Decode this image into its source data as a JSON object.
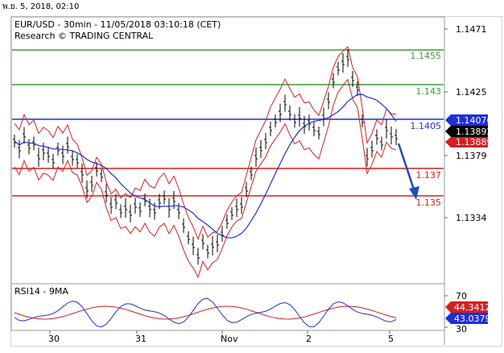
{
  "timestamp": "พ.ย. 5, 2018, 02:10",
  "header": {
    "title": "EUR/USD - 30min - 11/05/2018 03:10:18 (CET)",
    "subtitle": "Research © TRADING CENTRAL"
  },
  "price_axis": {
    "ticks": [
      "1.1471",
      "1.1425",
      "1.1379",
      "1.1334"
    ]
  },
  "levels": [
    {
      "label": "1.1455",
      "color": "#3a9a3a"
    },
    {
      "label": "1.143",
      "color": "#3a9a3a"
    },
    {
      "label": "1.1405",
      "color": "#1f2fd6"
    },
    {
      "label": "1.137",
      "color": "#d32020"
    },
    {
      "label": "1.135",
      "color": "#d32020"
    }
  ],
  "price_tags": {
    "level_1405": "1.14076",
    "last_price": "1.13892",
    "ma_value": "1.13889"
  },
  "rsi": {
    "title": "RSI14 - 9MA",
    "ticks": [
      "70",
      "30"
    ],
    "tag_ma": "44.3412",
    "tag_rsi": "43.0379"
  },
  "x_axis": {
    "labels": [
      "30",
      "31",
      "Nov",
      "2",
      "5"
    ]
  },
  "colors": {
    "level_green": "#3a9a3a",
    "level_blue": "#1f2fd6",
    "level_red": "#d32020",
    "bollinger": "#d32020",
    "ma": "#1f2fd6",
    "forecast_arrow": "#1f4fb4",
    "rsi_line": "#1f2fd6",
    "rsi_ma": "#d32020"
  }
}
